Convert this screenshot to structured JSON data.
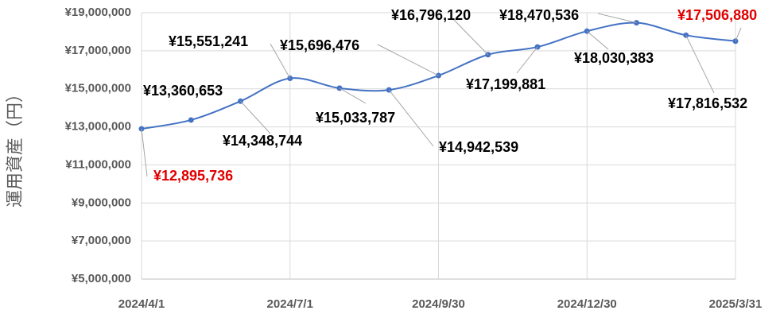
{
  "chart_data": {
    "type": "line",
    "y_label": "運用資産（円）",
    "categories": [
      "2024/4/1",
      null,
      null,
      "2024/7/1",
      null,
      null,
      "2024/9/30",
      null,
      null,
      "2024/12/30",
      null,
      null,
      "2025/3/31"
    ],
    "values": [
      12895736,
      13360653,
      14348744,
      15551241,
      15033787,
      14942539,
      15696476,
      16796120,
      17199881,
      18030383,
      18470536,
      17816532,
      17506880
    ],
    "value_labels": [
      "¥12,895,736",
      "¥13,360,653",
      "¥14,348,744",
      "¥15,551,241",
      "¥15,033,787",
      "¥14,942,539",
      "¥15,696,476",
      "¥16,796,120",
      "¥17,199,881",
      "¥18,030,383",
      "¥18,470,536",
      "¥17,816,532",
      "¥17,506,880"
    ],
    "color": "#4472c4",
    "value_label_color": "#000000",
    "highlight_color": "#e00000",
    "highlight_indices": [
      0,
      12
    ],
    "smooth": true,
    "grid": true,
    "ylim": [
      5000000,
      19000000
    ],
    "yticks": [
      {
        "value": 5000000,
        "label": "¥5,000,000"
      },
      {
        "value": 7000000,
        "label": "¥7,000,000"
      },
      {
        "value": 9000000,
        "label": "¥9,000,000"
      },
      {
        "value": 11000000,
        "label": "¥11,000,000"
      },
      {
        "value": 13000000,
        "label": "¥13,000,000"
      },
      {
        "value": 15000000,
        "label": "¥15,000,000"
      },
      {
        "value": 17000000,
        "label": "¥17,000,000"
      },
      {
        "value": 19000000,
        "label": "¥19,000,000"
      }
    ]
  }
}
